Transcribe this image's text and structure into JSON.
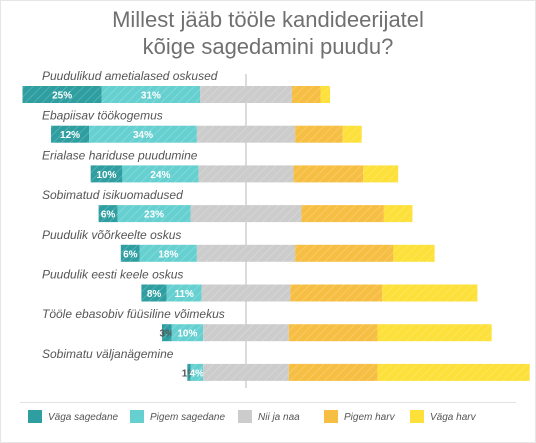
{
  "title": {
    "line1": "Millest jääb tööle kandideerijatel",
    "line2": "kõige sagedamini puudu?"
  },
  "colors": {
    "vaga_sagedane": "#2e9ea0",
    "pigem_sagedane": "#66d0d1",
    "nii_ja_naa": "#cccccc",
    "pigem_harv": "#f6bf43",
    "vaga_harv": "#fde039",
    "center_line": "#b9b9b9",
    "label_text": "#555555",
    "value_text": "#ffffff"
  },
  "legend": {
    "items": [
      {
        "label": "Väga sagedane",
        "color": "#2e9ea0"
      },
      {
        "label": "Pigem sagedane",
        "color": "#66d0d1"
      },
      {
        "label": "Nii ja naa",
        "color": "#cccccc"
      },
      {
        "label": "Pigem harv",
        "color": "#f6bf43"
      },
      {
        "label": "Väga harv",
        "color": "#fde039"
      }
    ]
  },
  "chart_data": {
    "type": "bar",
    "stacked": true,
    "diverging": true,
    "orientation": "horizontal",
    "title": "Millest jääb tööle kandideerijatel kõige sagedamini puudu?",
    "legend_position": "bottom",
    "grid": false,
    "categories": [
      "Puudulikud ametialased oskused",
      "Ebapiisav töökogemus",
      "Erialase hariduse puudumine",
      "Sobimatud isikuomadused",
      "Puudulik võõrkeelte oskus",
      "Puudulik eesti keele oskus",
      "Tööle ebasobiv füüsiline võimekus",
      "Sobimatu väljanägemine"
    ],
    "series": [
      {
        "name": "Väga sagedane",
        "values": [
          25,
          12,
          10,
          6,
          6,
          8,
          3,
          1
        ],
        "labels": [
          "25%",
          "12%",
          "10%",
          "6%",
          "6%",
          "8%",
          "3%",
          "1%"
        ]
      },
      {
        "name": "Pigem sagedane",
        "values": [
          31,
          34,
          24,
          23,
          18,
          11,
          10,
          4
        ],
        "labels": [
          "31%",
          "34%",
          "24%",
          "23%",
          "18%",
          "11%",
          "10%",
          "4%"
        ]
      },
      {
        "name": "Nii ja naa",
        "values": [
          29,
          31,
          30,
          35,
          31,
          28,
          27,
          27
        ]
      },
      {
        "name": "Pigem harv",
        "values": [
          9,
          15,
          22,
          26,
          31,
          29,
          28,
          28
        ]
      },
      {
        "name": "Väga harv",
        "values": [
          3,
          6,
          11,
          9,
          13,
          30,
          36,
          48
        ]
      }
    ]
  }
}
